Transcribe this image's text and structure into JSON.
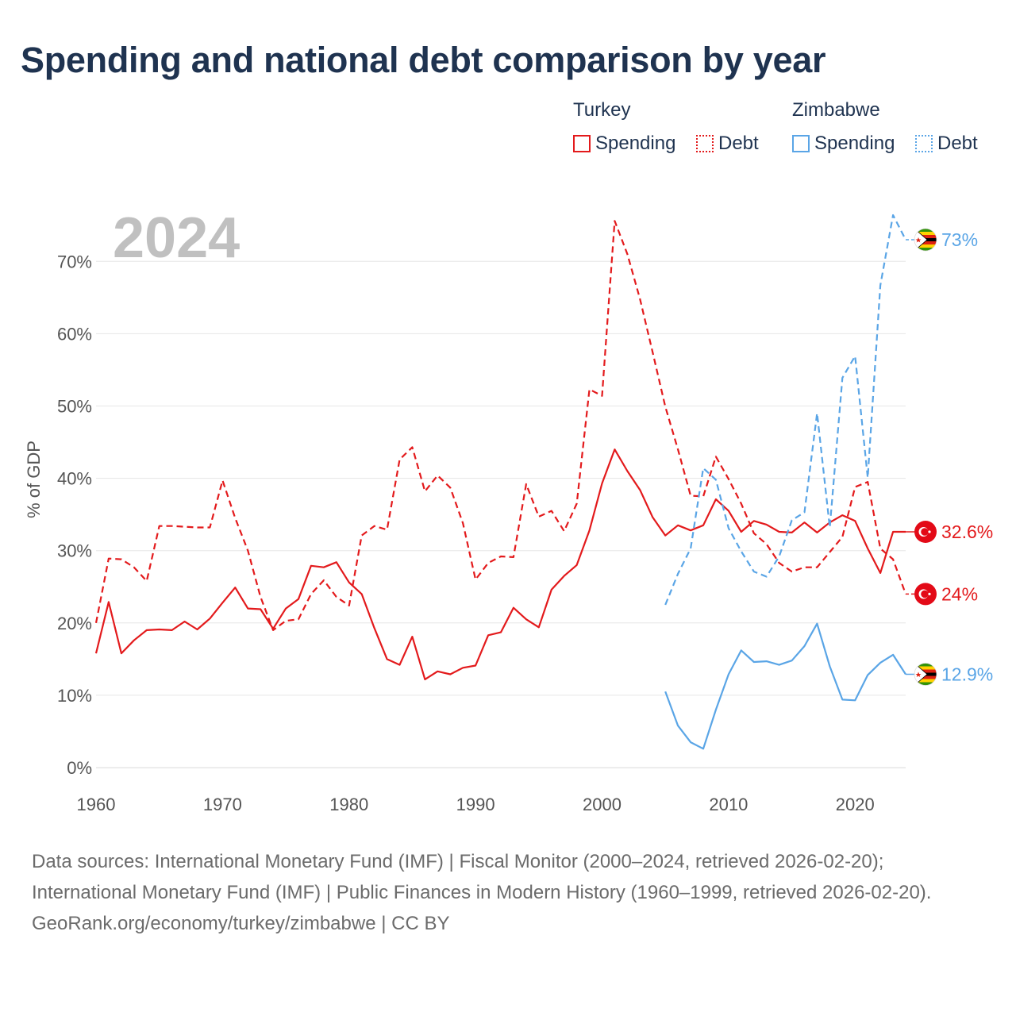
{
  "title": "Spending and national debt comparison by year",
  "legend": {
    "groups": [
      {
        "name": "Turkey",
        "color": "#e31a1c",
        "items": [
          {
            "label": "Spending",
            "style": "solid"
          },
          {
            "label": "Debt",
            "style": "dotted"
          }
        ]
      },
      {
        "name": "Zimbabwe",
        "color": "#5aa5e6",
        "items": [
          {
            "label": "Spending",
            "style": "solid"
          },
          {
            "label": "Debt",
            "style": "dotted"
          }
        ]
      }
    ]
  },
  "year_label": "2024",
  "footer": {
    "sources": "Data sources: International Monetary Fund (IMF) | Fiscal Monitor (2000–2024, retrieved 2026-02-20); International Monetary Fund (IMF) | Public Finances in Modern History (1960–1999, retrieved 2026-02-20).",
    "credit": "GeoRank.org/economy/turkey/zimbabwe | CC BY"
  },
  "chart_data": {
    "type": "line",
    "title": "Spending and national debt comparison by year",
    "xlabel": "",
    "ylabel": "% of GDP",
    "xlim": [
      1960,
      2024
    ],
    "ylim": [
      0,
      75
    ],
    "xticks": [
      1960,
      1970,
      1980,
      1990,
      2000,
      2010,
      2020
    ],
    "yticks": [
      0,
      10,
      20,
      30,
      40,
      50,
      60,
      70
    ],
    "ytick_labels": [
      "0%",
      "10%",
      "20%",
      "30%",
      "40%",
      "50%",
      "60%",
      "70%"
    ],
    "grid": true,
    "series": [
      {
        "name": "Turkey Spending",
        "country": "Turkey",
        "color": "#e31a1c",
        "dash": "solid",
        "end_label": "32.6%",
        "x": [
          1960,
          1961,
          1962,
          1963,
          1964,
          1965,
          1966,
          1967,
          1968,
          1969,
          1970,
          1971,
          1972,
          1973,
          1974,
          1975,
          1976,
          1977,
          1978,
          1979,
          1980,
          1981,
          1982,
          1983,
          1984,
          1985,
          1986,
          1987,
          1988,
          1989,
          1990,
          1991,
          1992,
          1993,
          1994,
          1995,
          1996,
          1997,
          1998,
          1999,
          2000,
          2001,
          2002,
          2003,
          2004,
          2005,
          2006,
          2007,
          2008,
          2009,
          2010,
          2011,
          2012,
          2013,
          2014,
          2015,
          2016,
          2017,
          2018,
          2019,
          2020,
          2021,
          2022,
          2023,
          2024
        ],
        "values": [
          15.8,
          22.9,
          15.8,
          17.6,
          19.0,
          19.1,
          19.0,
          20.2,
          19.1,
          20.6,
          22.8,
          24.9,
          22.0,
          21.9,
          19.2,
          22.0,
          23.3,
          27.9,
          27.7,
          28.4,
          25.6,
          24.0,
          19.3,
          15.0,
          14.2,
          18.1,
          12.2,
          13.3,
          12.9,
          13.8,
          14.1,
          18.3,
          18.7,
          22.1,
          20.5,
          19.4,
          24.6,
          26.5,
          28.0,
          32.8,
          39.3,
          44.0,
          41.0,
          38.4,
          34.6,
          32.1,
          33.5,
          32.8,
          33.5,
          37.1,
          35.5,
          32.6,
          34.1,
          33.6,
          32.6,
          32.5,
          33.9,
          32.5,
          33.9,
          34.9,
          34.1,
          30.3,
          26.9,
          32.6,
          32.6
        ]
      },
      {
        "name": "Turkey Debt",
        "country": "Turkey",
        "color": "#e31a1c",
        "dash": "dashed",
        "end_label": "24%",
        "x": [
          1960,
          1961,
          1962,
          1963,
          1964,
          1965,
          1966,
          1967,
          1968,
          1969,
          1970,
          1971,
          1972,
          1973,
          1974,
          1975,
          1976,
          1977,
          1978,
          1979,
          1980,
          1981,
          1982,
          1983,
          1984,
          1985,
          1986,
          1987,
          1988,
          1989,
          1990,
          1991,
          1992,
          1993,
          1994,
          1995,
          1996,
          1997,
          1998,
          1999,
          2000,
          2001,
          2002,
          2003,
          2004,
          2005,
          2006,
          2007,
          2008,
          2009,
          2010,
          2011,
          2012,
          2013,
          2014,
          2015,
          2016,
          2017,
          2018,
          2019,
          2020,
          2021,
          2022,
          2023,
          2024
        ],
        "values": [
          20.0,
          28.9,
          28.8,
          27.7,
          25.8,
          33.4,
          33.4,
          33.3,
          33.2,
          33.2,
          39.7,
          34.5,
          30.0,
          23.6,
          19.0,
          20.3,
          20.5,
          24.0,
          25.9,
          23.6,
          22.4,
          32.1,
          33.4,
          32.9,
          42.6,
          44.3,
          38.2,
          40.4,
          38.7,
          33.8,
          26.0,
          28.3,
          29.2,
          29.1,
          39.2,
          34.7,
          35.5,
          32.7,
          36.5,
          52.3,
          51.4,
          75.6,
          71.0,
          64.8,
          57.4,
          49.9,
          44.0,
          37.6,
          37.5,
          43.0,
          39.9,
          36.5,
          32.4,
          30.9,
          28.3,
          27.1,
          27.7,
          27.7,
          29.8,
          31.9,
          38.8,
          39.5,
          30.3,
          28.8,
          24.0
        ]
      },
      {
        "name": "Zimbabwe Spending",
        "country": "Zimbabwe",
        "color": "#5aa5e6",
        "dash": "solid",
        "end_label": "12.9%",
        "x": [
          2005,
          2006,
          2007,
          2008,
          2009,
          2010,
          2011,
          2012,
          2013,
          2014,
          2015,
          2016,
          2017,
          2018,
          2019,
          2020,
          2021,
          2022,
          2023,
          2024
        ],
        "values": [
          10.5,
          5.8,
          3.5,
          2.6,
          8.0,
          12.9,
          16.2,
          14.6,
          14.7,
          14.2,
          14.8,
          16.8,
          19.9,
          14.0,
          9.4,
          9.3,
          12.8,
          14.5,
          15.6,
          12.9
        ]
      },
      {
        "name": "Zimbabwe Debt",
        "country": "Zimbabwe",
        "color": "#5aa5e6",
        "dash": "dashed",
        "end_label": "73%",
        "x": [
          2005,
          2006,
          2007,
          2008,
          2009,
          2010,
          2011,
          2012,
          2013,
          2014,
          2015,
          2016,
          2017,
          2018,
          2019,
          2020,
          2021,
          2022,
          2023,
          2024
        ],
        "values": [
          22.5,
          26.8,
          30.3,
          41.4,
          39.8,
          33.1,
          29.9,
          27.1,
          26.4,
          29.2,
          34.2,
          35.3,
          49.0,
          33.2,
          53.9,
          56.9,
          40.1,
          66.7,
          76.4,
          73.0
        ]
      }
    ]
  }
}
